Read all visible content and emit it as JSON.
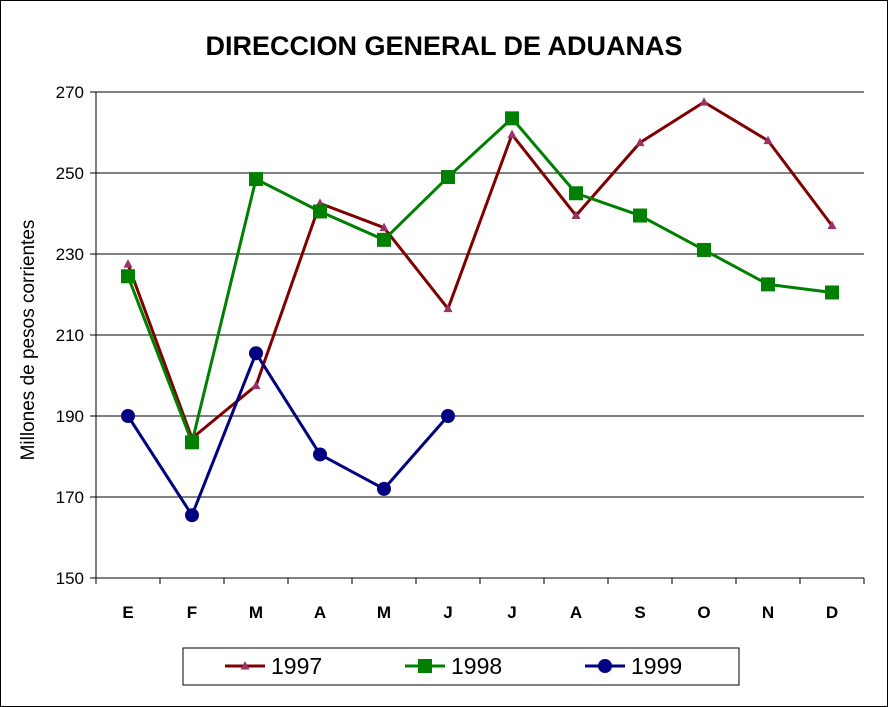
{
  "chart_data": {
    "type": "line",
    "title": "DIRECCION GENERAL DE ADUANAS",
    "xlabel": "",
    "ylabel": "Millones de pesos corrientes",
    "categories": [
      "E",
      "F",
      "M",
      "A",
      "M",
      "J",
      "J",
      "A",
      "S",
      "O",
      "N",
      "D"
    ],
    "ylim": [
      150,
      270
    ],
    "yticks": [
      150,
      170,
      190,
      210,
      230,
      250,
      270
    ],
    "grid": true,
    "legend": "bottom",
    "series": [
      {
        "name": "1997",
        "color": "#800000",
        "marker": "triangle",
        "marker_color": "#993366",
        "values": [
          227.5,
          184.5,
          197.5,
          242.5,
          236.5,
          216.5,
          259.5,
          239.5,
          257.5,
          267.5,
          258.0,
          237.0
        ]
      },
      {
        "name": "1998",
        "color": "#008000",
        "marker": "square",
        "marker_color": "#008000",
        "values": [
          224.5,
          183.5,
          248.5,
          240.5,
          233.5,
          249.0,
          263.5,
          245.0,
          239.5,
          231.0,
          222.5,
          220.5
        ]
      },
      {
        "name": "1999",
        "color": "#000080",
        "marker": "circle",
        "marker_color": "#000080",
        "values": [
          190.0,
          165.5,
          205.5,
          180.5,
          172.0,
          190.0,
          null,
          null,
          null,
          null,
          null,
          null
        ]
      }
    ]
  }
}
